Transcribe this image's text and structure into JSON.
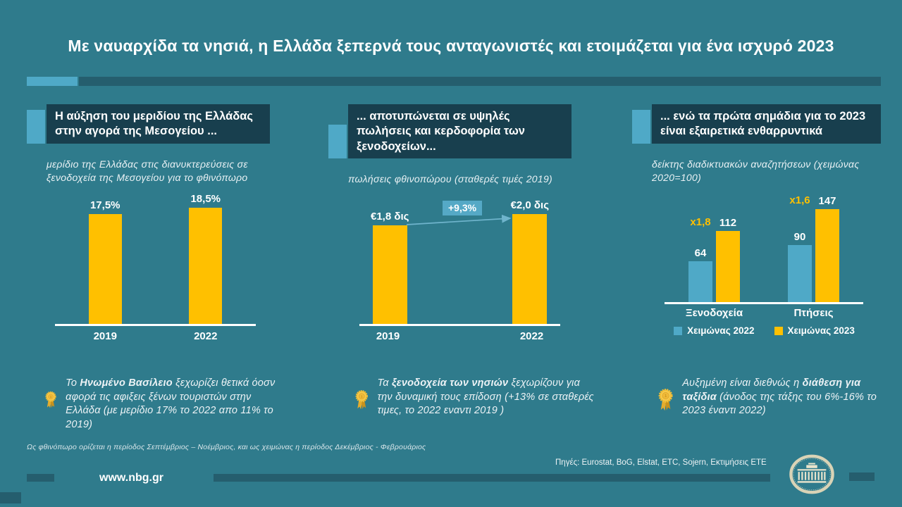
{
  "slide": {
    "title": "Με ναυαρχίδα τα νησιά, η Ελλάδα ξεπερνά τους ανταγωνιστές και ετοιμάζεται για ένα ισχυρό 2023",
    "footnote": "Ως φθινόπωρο ορίζεται η περίοδος Σεπτέμβριος – Νοέμβριος,  και ως χειμώνας  η περίοδος Δεκέμβριος  - Φεβρουάριος",
    "sources": "Πηγές: Eurostat, BoG, Elstat, ETC, Sojern, Εκτιμήσεις ΕΤΕ",
    "website": "www.nbg.gr"
  },
  "colors": {
    "background": "#2F7B8C",
    "header_box": "#183F4E",
    "accent_blue": "#4FA9C7",
    "strip_dark": "#255E6E",
    "bar_yellow": "#FFC000",
    "bar_blue": "#4FA9C7",
    "badge_blue": "#55A9C6"
  },
  "columns": [
    {
      "header": "Η αύξηση του μεριδίου της Ελλάδας στην αγορά της Μεσογείου ...",
      "subtitle": "μερίδιο της Ελλάδας στις διανυκτερεύσεις σε ξενοδοχεία της Μεσογείου για το φθινόπωρο"
    },
    {
      "header": "... αποτυπώνεται σε υψηλές πωλήσεις και κερδοφορία των ξενοδοχείων...",
      "subtitle": "πωλήσεις φθινοπώρου (σταθερές τιμές 2019)"
    },
    {
      "header": "... ενώ τα πρώτα σημάδια για το 2023 είναι εξαιρετικά ενθαρρυντικά",
      "subtitle": "δείκτης διαδικτυακών αναζητήσεων (χειμώνας 2020=100)"
    }
  ],
  "chart_data": [
    {
      "type": "bar",
      "title": "μερίδιο της Ελλάδας στις διανυκτερεύσεις σε ξενοδοχεία της Μεσογείου για το φθινόπωρο",
      "categories": [
        "2019",
        "2022"
      ],
      "values": [
        17.5,
        18.5
      ],
      "value_labels": [
        "17,5%",
        "18,5%"
      ],
      "bar_color": "#FFC000",
      "ylim": [
        0,
        21
      ],
      "grid": false
    },
    {
      "type": "bar",
      "title": "πωλήσεις φθινοπώρου (σταθερές τιμές 2019)",
      "categories": [
        "2019",
        "2022"
      ],
      "values": [
        1.8,
        2.0
      ],
      "value_labels": [
        "€1,8 δις",
        "€2,0 δις"
      ],
      "annotation": "+9,3%",
      "bar_color": "#FFC000",
      "ylim": [
        0,
        2.4
      ],
      "grid": false
    },
    {
      "type": "bar",
      "title": "δείκτης διαδικτυακών αναζητήσεων (χειμώνας 2020=100)",
      "categories": [
        "Ξενοδοχεία",
        "Πτήσεις"
      ],
      "series": [
        {
          "name": "Χειμώνας 2022",
          "color": "#4FA9C7",
          "values": [
            64,
            90
          ]
        },
        {
          "name": "Χειμώνας 2023",
          "color": "#FFC000",
          "values": [
            112,
            147
          ]
        }
      ],
      "multipliers": [
        "x1,8",
        "x1,6"
      ],
      "legend_position": "bottom",
      "ylim": [
        0,
        170
      ],
      "grid": false
    }
  ],
  "notes": [
    {
      "segments": [
        {
          "text": "Το ",
          "bold": false
        },
        {
          "text": "Ηνωμένο Βασίλειο",
          "bold": true
        },
        {
          "text": " ξεχωρίζει θετικά όοσν αφορά τις αφιξεις  ξένων τουριστών στην Ελλάδα (με μερίδιο 17% το 2022 απο 11% το 2019)",
          "bold": false
        }
      ]
    },
    {
      "segments": [
        {
          "text": "Τα ",
          "bold": false
        },
        {
          "text": "ξενοδοχεία των νησιών",
          "bold": true
        },
        {
          "text": " ξεχωρίζουν για την δυναμική τους επίδοση (+13% σε σταθερές τιμες, το 2022 εναντι 2019 )",
          "bold": false
        }
      ]
    },
    {
      "segments": [
        {
          "text": "Αυξημένη είναι διεθνώς η ",
          "bold": false
        },
        {
          "text": "διάθεση για ταξίδια",
          "bold": true
        },
        {
          "text": " (άνοδος της τάξης του 6%-16% το 2023 έναντι 2022)",
          "bold": false
        }
      ]
    }
  ],
  "icons": {
    "medal": "gold-first-place-rosette-icon",
    "logo": "nbg-bank-emblem-logo"
  }
}
